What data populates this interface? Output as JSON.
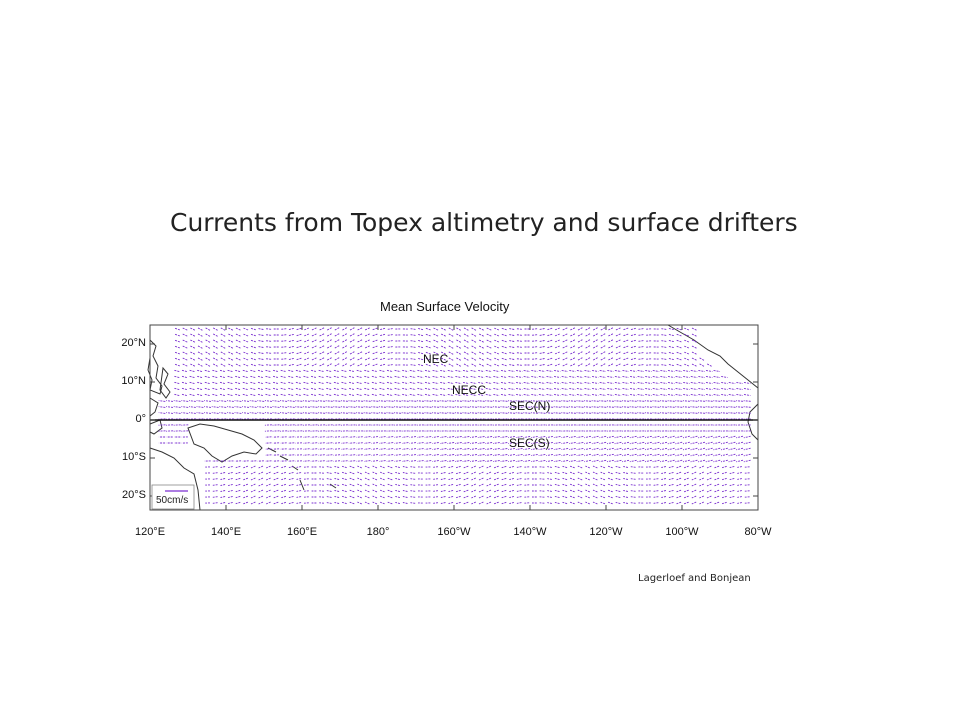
{
  "slide": {
    "title": "Currents from Topex altimetry and surface drifters",
    "credit": "Lagerloef and Bonjean"
  },
  "map": {
    "title": "Mean Surface Velocity",
    "lon_range": [
      "120E",
      "80W"
    ],
    "lat_range": [
      "25S",
      "25N"
    ],
    "lat_ticks": [
      "20°N",
      "10°N",
      "0°",
      "10°S",
      "20°S"
    ],
    "lon_ticks": [
      "120°E",
      "140°E",
      "160°E",
      "180°",
      "160°W",
      "140°W",
      "120°W",
      "100°W",
      "80°W"
    ],
    "current_labels": [
      "NEC",
      "NECC",
      "SEC(N)",
      "SEC(S)"
    ],
    "scale_label": "50cm/s",
    "vector_color": "#7a2fd0",
    "coast_color": "#333333",
    "land": [
      "Philippines",
      "New Guinea",
      "Borneo",
      "Solomon Islands",
      "Central America"
    ]
  }
}
